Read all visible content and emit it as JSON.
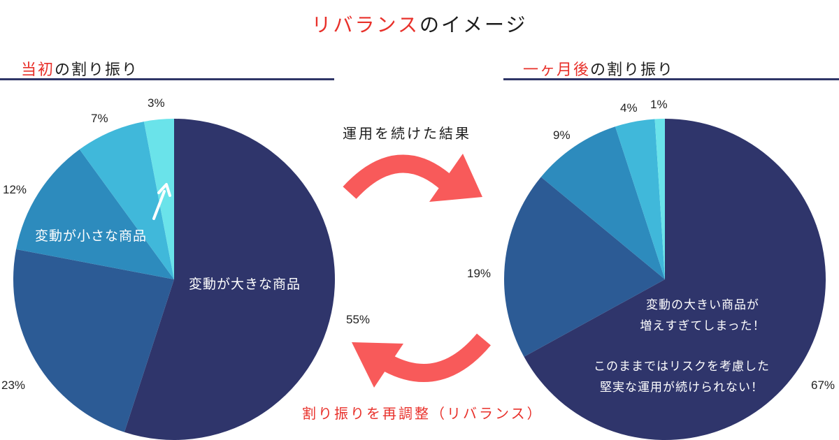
{
  "title": {
    "highlight": "リバランス",
    "rest": "のイメージ"
  },
  "left": {
    "heading_highlight": "当初",
    "heading_rest": "の割り振り",
    "label_large": "変動が大きな商品",
    "label_small": "変動が小さな商品"
  },
  "right": {
    "heading_highlight": "一ヶ月後",
    "heading_rest": "の割り振り",
    "note_line1": "変動の大きい商品が",
    "note_line2": "増えすぎてしまった！",
    "note_line3": "このままではリスクを考慮した",
    "note_line4": "堅実な運用が続けられない！"
  },
  "arrows": {
    "top_label": "運用を続けた結果",
    "bottom_label": "割り振りを再調整（リバランス）",
    "color": "#f85a5a"
  },
  "chart_data": [
    {
      "type": "pie",
      "title": "当初の割り振り",
      "categories": [
        "55%",
        "23%",
        "12%",
        "7%",
        "3%"
      ],
      "values": [
        55,
        23,
        12,
        7,
        3
      ],
      "colors": [
        "#2f356b",
        "#2c5b95",
        "#2d8bbd",
        "#40b8da",
        "#6ae3ea"
      ]
    },
    {
      "type": "pie",
      "title": "一ヶ月後の割り振り",
      "categories": [
        "67%",
        "19%",
        "9%",
        "4%",
        "1%"
      ],
      "values": [
        67,
        19,
        9,
        4,
        1
      ],
      "colors": [
        "#2f356b",
        "#2c5b95",
        "#2d8bbd",
        "#40b8da",
        "#6ae3ea"
      ]
    }
  ]
}
